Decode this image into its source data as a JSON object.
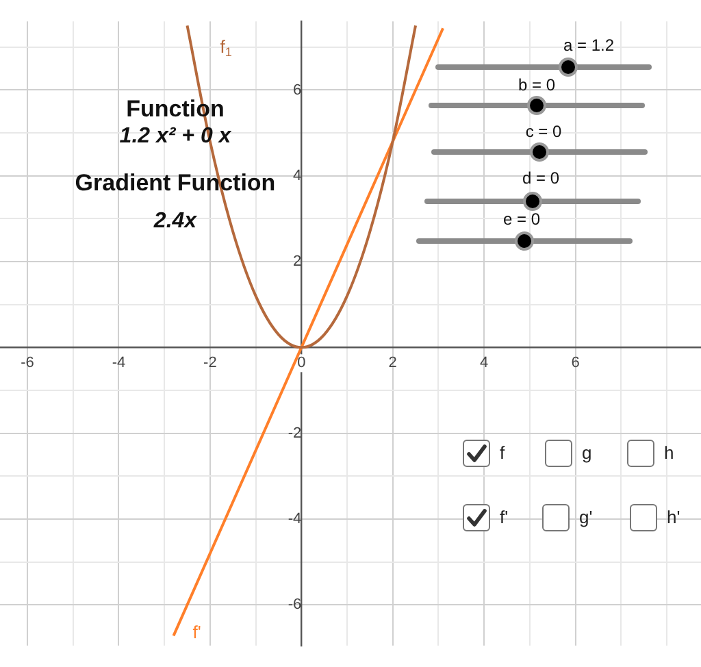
{
  "chart_data": {
    "type": "line",
    "series": [
      {
        "name": "f$_{1}$",
        "color": "#b5693c",
        "x": [
          -2.5,
          -2,
          -1.5,
          -1,
          -0.5,
          0,
          0.5,
          1,
          1.5,
          2,
          2.5
        ],
        "values": [
          7.5,
          4.8,
          2.7,
          1.2,
          0.3,
          0,
          0.3,
          1.2,
          2.7,
          4.8,
          7.5
        ]
      },
      {
        "name": "f'",
        "color": "#ff7f2a",
        "x": [
          -2.8,
          3.1
        ],
        "values": [
          -6.72,
          7.44
        ]
      }
    ],
    "xlim": [
      -6.6,
      8.75
    ],
    "ylim": [
      -6.95,
      7.6
    ],
    "xticks": [
      -6,
      {
        "value": -5,
        "label": null
      },
      -4,
      {
        "value": -3,
        "label": null
      },
      -2,
      {
        "value": -1,
        "label": null
      },
      0,
      {
        "value": 1,
        "label": null
      },
      2,
      {
        "value": 3,
        "label": null
      },
      4,
      {
        "value": 5,
        "label": null
      },
      6,
      {
        "value": 7,
        "label": null
      },
      {
        "value": 8,
        "label": null
      }
    ],
    "yticks": [
      -6,
      {
        "value": -5,
        "label": null
      },
      -4,
      {
        "value": -3,
        "label": null
      },
      -2,
      {
        "value": -1,
        "label": null
      },
      {
        "value": 0,
        "label": null
      },
      {
        "value": 1,
        "label": null
      },
      2,
      {
        "value": 3,
        "label": null
      },
      4,
      {
        "value": 5,
        "label": null
      },
      6,
      {
        "value": 7,
        "label": null
      }
    ],
    "grid": true,
    "legend": false,
    "marker": "none",
    "line_style": "solid",
    "annotations": [
      "Function",
      "1.2 x² + 0 x",
      "Gradient Function",
      "2.4x",
      "a = 1.2",
      "b = 0",
      "c = 0",
      "d = 0",
      "e = 0",
      "f",
      "g",
      "h",
      "f'",
      "g'",
      "h'"
    ]
  }
}
